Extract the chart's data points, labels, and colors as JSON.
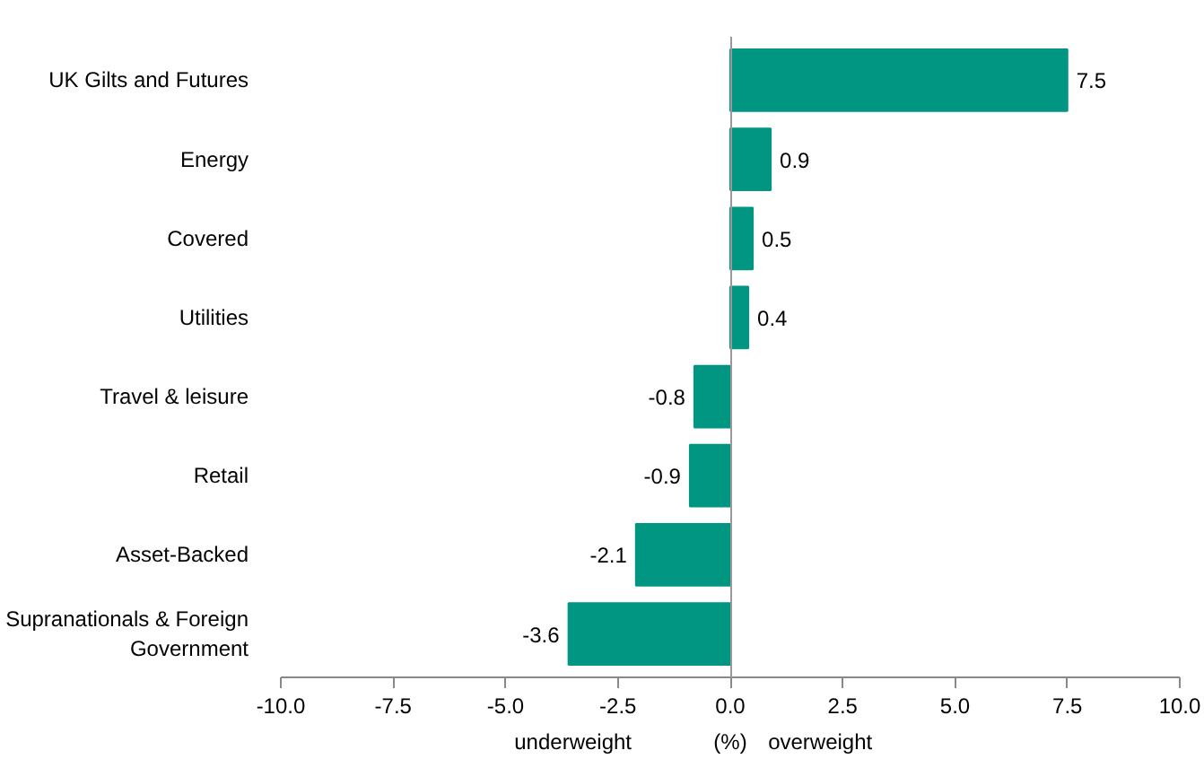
{
  "chart_data": {
    "type": "bar",
    "orientation": "horizontal",
    "categories": [
      "UK Gilts and Futures",
      "Energy",
      "Covered",
      "Utilities",
      "Travel & leisure",
      "Retail",
      "Asset-Backed",
      "Supranationals & Foreign Government"
    ],
    "values": [
      7.5,
      0.9,
      0.5,
      0.4,
      -0.8,
      -0.9,
      -2.1,
      -3.6
    ],
    "color": "#009682",
    "xlim": [
      -10,
      10
    ],
    "xticks": [
      {
        "value": -10,
        "label": "-10.0"
      },
      {
        "value": -7.5,
        "label": "-7.5"
      },
      {
        "value": -5,
        "label": "-5.0"
      },
      {
        "value": -2.5,
        "label": "-2.5"
      },
      {
        "value": 0,
        "label": "0.0"
      },
      {
        "value": 2.5,
        "label": "2.5"
      },
      {
        "value": 5,
        "label": "5.0"
      },
      {
        "value": 7.5,
        "label": "7.5"
      },
      {
        "value": 10,
        "label": "10.0"
      }
    ],
    "xlabel": "(%)",
    "annotations": [
      "underweight",
      "overweight"
    ],
    "data_labels": true
  }
}
